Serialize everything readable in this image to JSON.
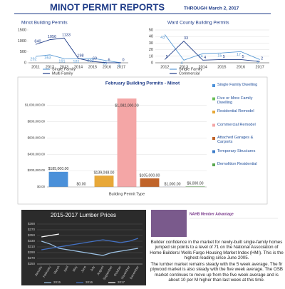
{
  "header": {
    "title": "MINOT PERMIT REPORTS",
    "subtitle": "THROUGH March 2, 2017"
  },
  "chart_data": [
    {
      "type": "line",
      "title": "Minot Building Permits",
      "categories": [
        "2011",
        "2012",
        "2013",
        "2014",
        "2015",
        "2016",
        "2017"
      ],
      "series": [
        {
          "name": "Single Family",
          "color": "#5b9bd5",
          "values": [
            292,
            363,
            191,
            181,
            209,
            95,
            2
          ]
        },
        {
          "name": "Multi Family",
          "color": "#1f3c88",
          "values": [
            840,
            1056,
            1133,
            198,
            60,
            6,
            0
          ]
        }
      ],
      "ylim": [
        0,
        1500
      ],
      "yticks": [
        0,
        500,
        1000,
        1500
      ],
      "legend": "bottom"
    },
    {
      "type": "line",
      "title": "Ward County Building Permits",
      "categories": [
        "2012",
        "2013",
        "2014",
        "2015",
        "2016",
        "2017"
      ],
      "series": [
        {
          "name": "Single Family",
          "color": "#5b9bd5",
          "values": [
            43,
            4,
            14,
            15,
            17,
            5
          ]
        },
        {
          "name": "Commercial",
          "color": "#1f3c88",
          "values": [
            5,
            33,
            4,
            5,
            5,
            2
          ]
        }
      ],
      "ylim": [
        0,
        50
      ],
      "yticks": [
        0,
        10,
        20,
        30,
        40,
        50
      ],
      "grid": true,
      "legend": "bottom"
    },
    {
      "type": "bar",
      "title": "February Building Permits - Minot",
      "x_label": "Building Permit Type",
      "categories": [
        "Single Family Dwelling",
        "Five or More Family Dwelling",
        "Residential Remodel",
        "Commercial Remodel",
        "Attached Garages & Carports",
        "Temporary Structures",
        "Demolition Residential"
      ],
      "values": [
        185000,
        0,
        139048,
        1082000,
        105000,
        1000,
        6000
      ],
      "value_labels": [
        "$185,000.00",
        "$0.00",
        "$139,048.00",
        "$1,082,000.00",
        "$105,000.00",
        "$1,000.00",
        "$6,000.00"
      ],
      "colors": [
        "#4a90d9",
        "#6bbf59",
        "#e8a838",
        "#f4a6a6",
        "#c0642a",
        "#3d7cc9",
        "#5aa84f"
      ],
      "ylim": [
        0,
        1100000
      ],
      "yticks": [
        {
          "value": 0,
          "label": "$0.00"
        },
        {
          "value": 200000,
          "label": "$200,000.00"
        },
        {
          "value": 400000,
          "label": "$400,000.00"
        },
        {
          "value": 600000,
          "label": "$600,000.00"
        },
        {
          "value": 800000,
          "label": "$800,000.00"
        },
        {
          "value": 1000000,
          "label": "$1,000,000.00"
        }
      ],
      "grid": true,
      "legend": "right"
    },
    {
      "type": "line",
      "title": "2015-2017 Lumber Prices",
      "categories": [
        "January",
        "February",
        "March",
        "April",
        "May",
        "June",
        "July",
        "August",
        "September",
        "October",
        "November",
        "December"
      ],
      "series": [
        {
          "name": "2015",
          "color": "#9dc3e6",
          "values": [
            330,
            320,
            305,
            300,
            295,
            290,
            285,
            280,
            290,
            295,
            300,
            305
          ]
        },
        {
          "name": "2016",
          "color": "#4472c4",
          "values": [
            300,
            305,
            310,
            315,
            320,
            325,
            330,
            335,
            330,
            325,
            330,
            340
          ]
        },
        {
          "name": "2017",
          "color": "#ffffff",
          "values": [
            345,
            350,
            355,
            null,
            null,
            null,
            null,
            null,
            null,
            null,
            null,
            null
          ]
        }
      ],
      "ylim": [
        250,
        390
      ],
      "yticks": [
        {
          "value": 250,
          "label": "$250"
        },
        {
          "value": 270,
          "label": "$270"
        },
        {
          "value": 290,
          "label": "$290"
        },
        {
          "value": 310,
          "label": "$310"
        },
        {
          "value": 330,
          "label": "$330"
        },
        {
          "value": 350,
          "label": "$350"
        },
        {
          "value": 370,
          "label": "$370"
        },
        {
          "value": 390,
          "label": "$390"
        }
      ],
      "grid": true,
      "legend": "bottom",
      "dark": true
    }
  ],
  "ad": {
    "title": "NAHB Member Advantage"
  },
  "paragraphs": [
    "Builder confidence in the market for newly-built single-family homes jumped six points to a level of 71 on the National Association of Home Builders/ Wells Fargo Housing Market Index (HMI). This is the highest reading since June 2005.",
    "The lumber market remains steady with the 5 week average. The fir plywood market is also steady with the five week average. The OSB market continues to move up from the five week average and is about 10 per M higher than last week at this time."
  ]
}
